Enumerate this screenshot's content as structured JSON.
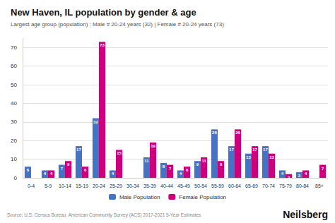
{
  "chart_data": {
    "type": "bar",
    "title": "New Haven, IL population by gender & age",
    "subtitle": "Largest age group (population) : Male # 20-24 years (32) | Female # 20-24 years (73)",
    "annotations": [
      "Source: U.S. Census Bureau, American Community Survey (ACS) 2017-2021 5-Year Estimates",
      "Neilsberg"
    ],
    "categories": [
      "0-4",
      "5-9",
      "10-14",
      "15-19",
      "20-24",
      "25-29",
      "30-34",
      "35-39",
      "40-44",
      "45-49",
      "50-54",
      "55-59",
      "60-64",
      "65-69",
      "70-74",
      "75-79",
      "80-84",
      "85+"
    ],
    "series": [
      {
        "name": "Male Population",
        "color": "#4472c4",
        "values": [
          6,
          4,
          7,
          17,
          32,
          4,
          0,
          11,
          8,
          4,
          9,
          26,
          17,
          13,
          17,
          4,
          3,
          0
        ]
      },
      {
        "name": "Female Population",
        "color": "#cc007a",
        "values": [
          0,
          4,
          9,
          6,
          73,
          15,
          0,
          19,
          7,
          6,
          11,
          9,
          26,
          17,
          13,
          2,
          4,
          7
        ]
      }
    ],
    "ylim": [
      0,
      75
    ],
    "yticks": [
      0,
      10,
      20,
      30,
      40,
      50,
      60,
      70
    ],
    "grid": true,
    "legend": "bottom",
    "data_labels": true
  }
}
